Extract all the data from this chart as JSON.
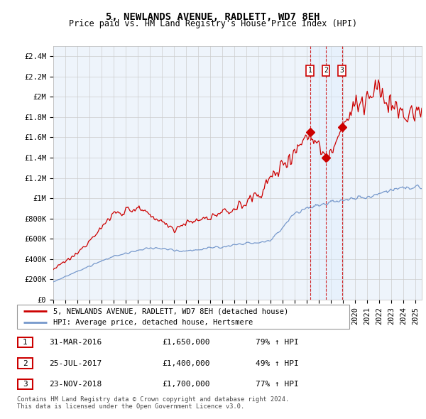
{
  "title": "5, NEWLANDS AVENUE, RADLETT, WD7 8EH",
  "subtitle": "Price paid vs. HM Land Registry's House Price Index (HPI)",
  "ylabel_ticks": [
    "£0",
    "£200K",
    "£400K",
    "£600K",
    "£800K",
    "£1M",
    "£1.2M",
    "£1.4M",
    "£1.6M",
    "£1.8M",
    "£2M",
    "£2.2M",
    "£2.4M"
  ],
  "ytick_values": [
    0,
    200000,
    400000,
    600000,
    800000,
    1000000,
    1200000,
    1400000,
    1600000,
    1800000,
    2000000,
    2200000,
    2400000
  ],
  "ylim": [
    0,
    2500000
  ],
  "xlim_start": 1995.0,
  "xlim_end": 2025.5,
  "red_line_color": "#cc0000",
  "blue_line_color": "#7799cc",
  "shade_color": "#ddeeff",
  "grid_color": "#cccccc",
  "background_color": "#ffffff",
  "plot_bg_color": "#eef4fb",
  "sale_markers": [
    {
      "year": 2016.25,
      "price": 1650000,
      "label": "1"
    },
    {
      "year": 2017.57,
      "price": 1400000,
      "label": "2"
    },
    {
      "year": 2018.9,
      "price": 1700000,
      "label": "3"
    }
  ],
  "legend_entries": [
    "5, NEWLANDS AVENUE, RADLETT, WD7 8EH (detached house)",
    "HPI: Average price, detached house, Hertsmere"
  ],
  "table_rows": [
    [
      "1",
      "31-MAR-2016",
      "£1,650,000",
      "79% ↑ HPI"
    ],
    [
      "2",
      "25-JUL-2017",
      "£1,400,000",
      "49% ↑ HPI"
    ],
    [
      "3",
      "23-NOV-2018",
      "£1,700,000",
      "77% ↑ HPI"
    ]
  ],
  "footer": "Contains HM Land Registry data © Crown copyright and database right 2024.\nThis data is licensed under the Open Government Licence v3.0.",
  "title_fontsize": 10,
  "subtitle_fontsize": 8.5,
  "tick_fontsize": 7.5,
  "legend_fontsize": 7.5
}
